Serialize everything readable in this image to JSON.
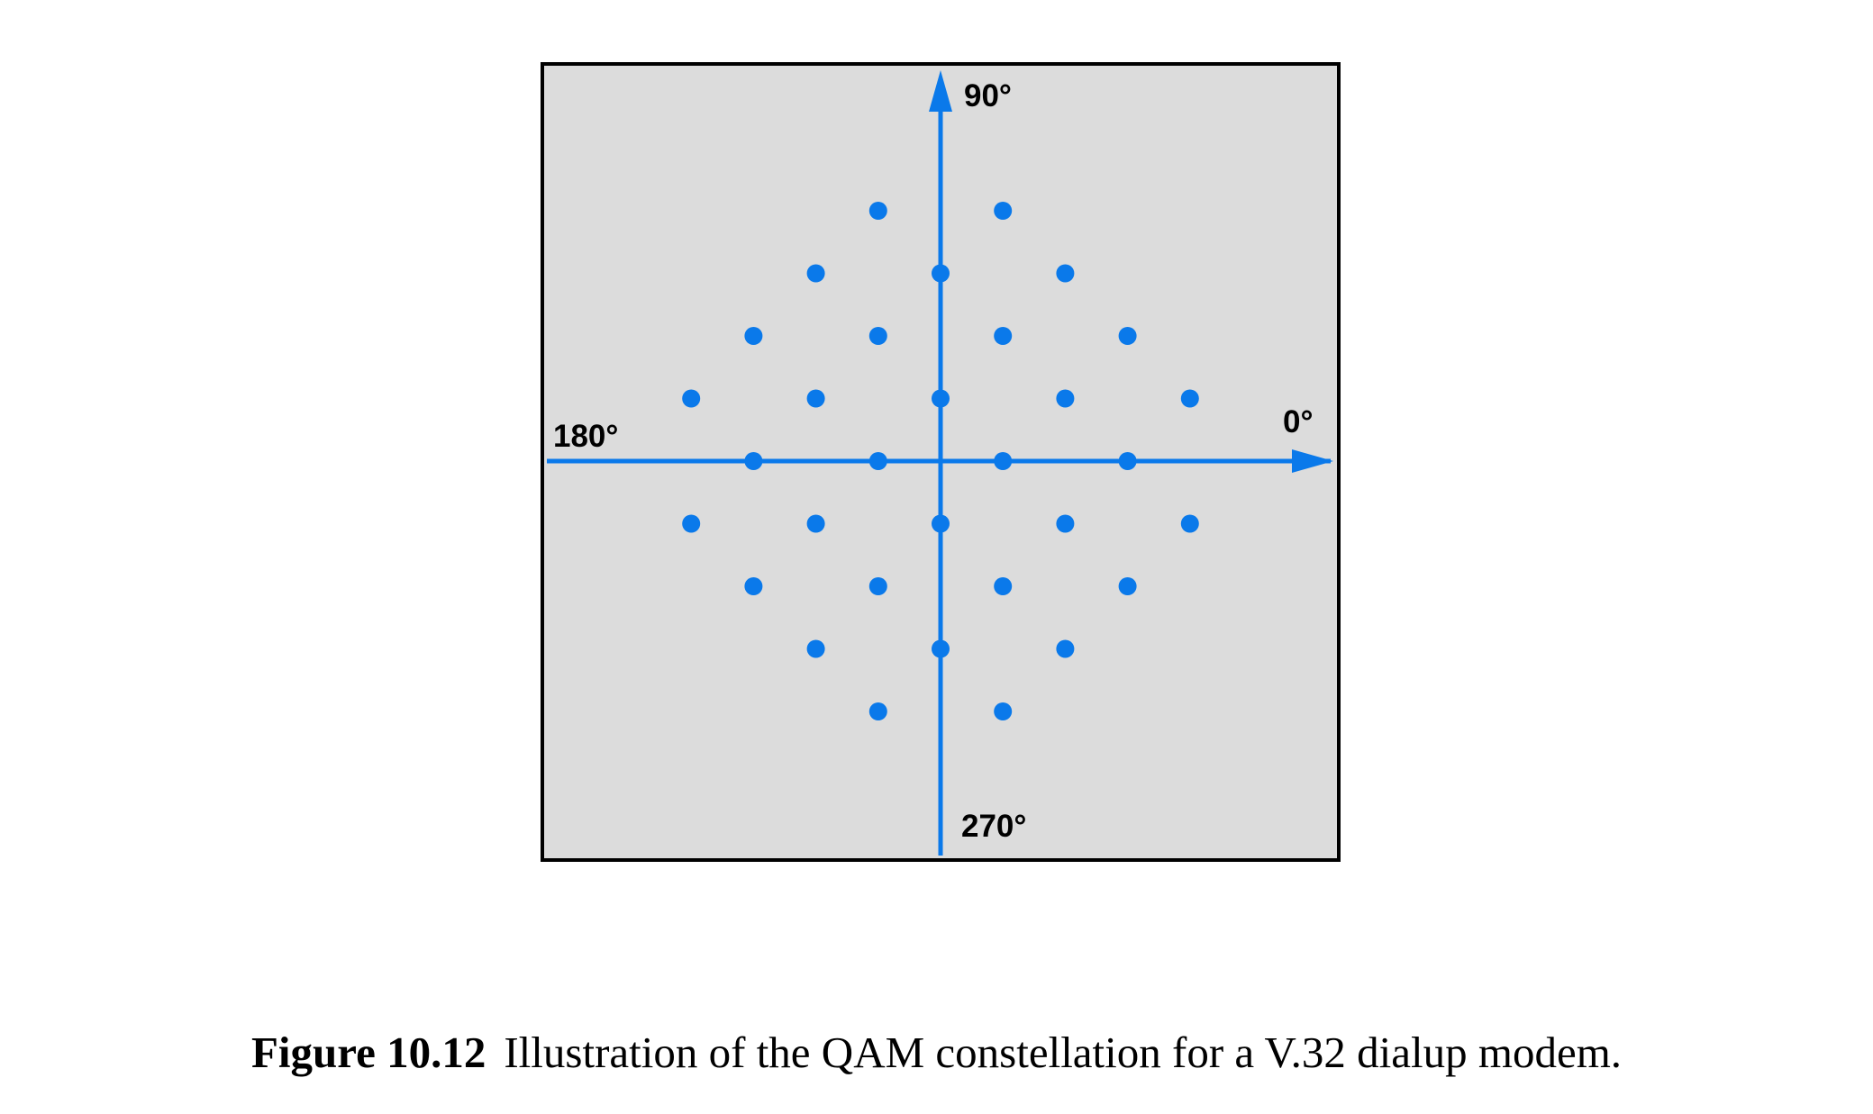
{
  "colors": {
    "background": "#dcdcdc",
    "frame": "#000000",
    "accent": "#0a79ea"
  },
  "diagram": {
    "labels": {
      "north": "90°",
      "east": "0°",
      "west": "180°",
      "south": "270°"
    },
    "constellation_points": [
      [
        -1,
        4
      ],
      [
        1,
        4
      ],
      [
        -2,
        3
      ],
      [
        0,
        3
      ],
      [
        2,
        3
      ],
      [
        -3,
        2
      ],
      [
        -1,
        2
      ],
      [
        1,
        2
      ],
      [
        3,
        2
      ],
      [
        -4,
        1
      ],
      [
        -2,
        1
      ],
      [
        0,
        1
      ],
      [
        2,
        1
      ],
      [
        4,
        1
      ],
      [
        -3,
        0
      ],
      [
        -1,
        0
      ],
      [
        1,
        0
      ],
      [
        3,
        0
      ],
      [
        -4,
        -1
      ],
      [
        -2,
        -1
      ],
      [
        0,
        -1
      ],
      [
        2,
        -1
      ],
      [
        4,
        -1
      ],
      [
        -3,
        -2
      ],
      [
        -1,
        -2
      ],
      [
        1,
        -2
      ],
      [
        3,
        -2
      ],
      [
        -2,
        -3
      ],
      [
        0,
        -3
      ],
      [
        2,
        -3
      ],
      [
        -1,
        -4
      ],
      [
        1,
        -4
      ]
    ]
  },
  "caption": {
    "number": "Figure 10.12",
    "text": "Illustration of the QAM constellation for a V.32 dialup modem."
  }
}
